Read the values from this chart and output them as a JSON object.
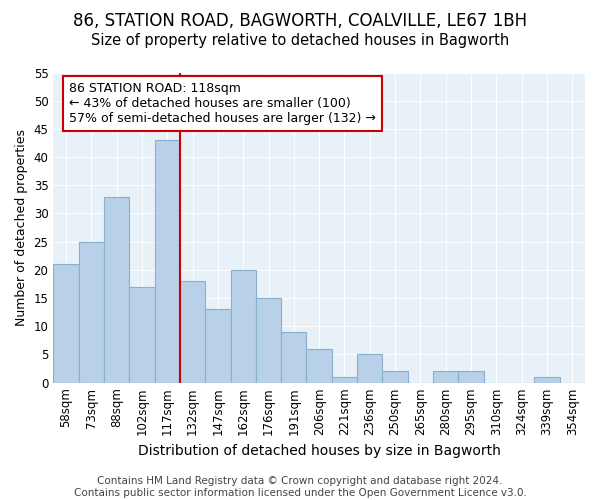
{
  "title1": "86, STATION ROAD, BAGWORTH, COALVILLE, LE67 1BH",
  "title2": "Size of property relative to detached houses in Bagworth",
  "xlabel": "Distribution of detached houses by size in Bagworth",
  "ylabel": "Number of detached properties",
  "bar_labels": [
    "58sqm",
    "73sqm",
    "88sqm",
    "102sqm",
    "117sqm",
    "132sqm",
    "147sqm",
    "162sqm",
    "176sqm",
    "191sqm",
    "206sqm",
    "221sqm",
    "236sqm",
    "250sqm",
    "265sqm",
    "280sqm",
    "295sqm",
    "310sqm",
    "324sqm",
    "339sqm",
    "354sqm"
  ],
  "bar_values": [
    21,
    25,
    33,
    17,
    43,
    18,
    13,
    20,
    15,
    9,
    6,
    1,
    5,
    2,
    0,
    2,
    2,
    0,
    0,
    1,
    0
  ],
  "bar_color": "#b8d0e8",
  "bar_edge_color": "#8ab0cc",
  "background_color": "#e8f0f8",
  "vline_x": 4.5,
  "vline_color": "#cc0000",
  "annotation_text": "86 STATION ROAD: 118sqm\n← 43% of detached houses are smaller (100)\n57% of semi-detached houses are larger (132) →",
  "annotation_box_facecolor": "#ffffff",
  "annotation_box_edgecolor": "#cc0000",
  "ylim": [
    0,
    55
  ],
  "yticks": [
    0,
    5,
    10,
    15,
    20,
    25,
    30,
    35,
    40,
    45,
    50,
    55
  ],
  "footer": "Contains HM Land Registry data © Crown copyright and database right 2024.\nContains public sector information licensed under the Open Government Licence v3.0.",
  "title1_fontsize": 12,
  "title2_fontsize": 10.5,
  "xlabel_fontsize": 10,
  "ylabel_fontsize": 9,
  "tick_fontsize": 8.5,
  "annotation_fontsize": 9,
  "footer_fontsize": 7.5
}
